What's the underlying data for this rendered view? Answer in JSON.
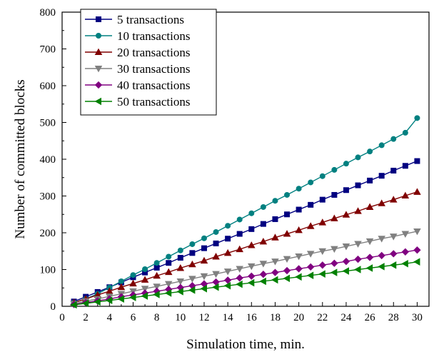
{
  "chart_data": {
    "type": "line",
    "title": "",
    "xlabel": "Simulation time, min.",
    "ylabel": "Number of committed blocks",
    "xlim": [
      0,
      31
    ],
    "ylim": [
      0,
      800
    ],
    "x_ticks": [
      0,
      2,
      4,
      6,
      8,
      10,
      12,
      14,
      16,
      18,
      20,
      22,
      24,
      26,
      28,
      30
    ],
    "y_ticks": [
      0,
      100,
      200,
      300,
      400,
      500,
      600,
      700,
      800
    ],
    "grid": false,
    "legend_position": "top-left",
    "x": [
      1,
      2,
      3,
      4,
      5,
      6,
      7,
      8,
      9,
      10,
      11,
      12,
      13,
      14,
      15,
      16,
      17,
      18,
      19,
      20,
      21,
      22,
      23,
      24,
      25,
      26,
      27,
      28,
      29,
      30
    ],
    "series": [
      {
        "name": "5 transactions",
        "color": "#000080",
        "marker": "square",
        "values": [
          13,
          26,
          39,
          52,
          65,
          79,
          92,
          105,
          118,
          132,
          145,
          158,
          171,
          184,
          197,
          210,
          224,
          237,
          250,
          263,
          276,
          290,
          303,
          316,
          329,
          342,
          355,
          369,
          382,
          395
        ]
      },
      {
        "name": "10 transactions",
        "color": "#008080",
        "marker": "circle",
        "values": [
          10,
          20,
          34,
          51,
          68,
          85,
          101,
          118,
          135,
          152,
          169,
          185,
          202,
          219,
          236,
          253,
          270,
          287,
          303,
          320,
          337,
          354,
          371,
          388,
          405,
          421,
          438,
          455,
          472,
          512
        ]
      },
      {
        "name": "20 transactions",
        "color": "#800000",
        "marker": "triangle-up",
        "values": [
          10,
          20,
          31,
          41,
          52,
          62,
          72,
          83,
          93,
          104,
          114,
          124,
          135,
          145,
          155,
          166,
          176,
          187,
          197,
          207,
          218,
          228,
          239,
          249,
          259,
          270,
          280,
          290,
          301,
          311
        ]
      },
      {
        "name": "30 transactions",
        "color": "#808080",
        "marker": "triangle-down",
        "values": [
          7,
          14,
          20,
          27,
          34,
          41,
          48,
          54,
          61,
          68,
          75,
          82,
          88,
          95,
          102,
          109,
          116,
          122,
          129,
          136,
          143,
          150,
          156,
          163,
          170,
          177,
          184,
          190,
          197,
          204
        ]
      },
      {
        "name": "40 transactions",
        "color": "#800080",
        "marker": "diamond",
        "values": [
          5,
          10,
          15,
          20,
          26,
          31,
          36,
          41,
          46,
          51,
          56,
          61,
          66,
          71,
          77,
          82,
          87,
          92,
          97,
          102,
          107,
          112,
          117,
          122,
          128,
          133,
          138,
          143,
          148,
          153
        ]
      },
      {
        "name": "50 transactions",
        "color": "#008000",
        "marker": "triangle-left",
        "values": [
          4,
          8,
          12,
          16,
          20,
          24,
          28,
          32,
          36,
          40,
          44,
          48,
          52,
          56,
          60,
          64,
          68,
          72,
          76,
          80,
          84,
          88,
          92,
          96,
          100,
          104,
          108,
          112,
          116,
          121
        ]
      }
    ]
  }
}
